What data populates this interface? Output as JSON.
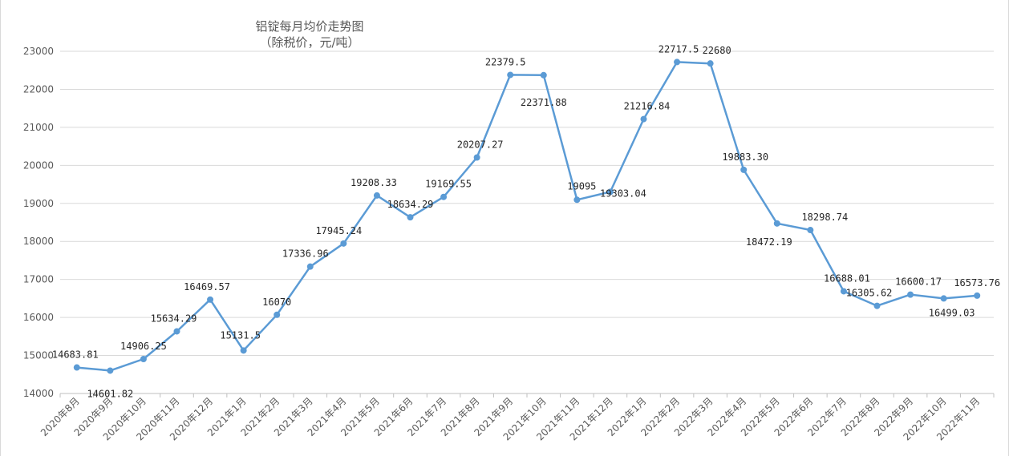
{
  "chart_data": {
    "type": "line",
    "title": "铝锭每月均价走势图",
    "subtitle": "（除税价，元/吨）",
    "xlabel": "",
    "ylabel": "",
    "ylim": [
      14000,
      23000
    ],
    "yticks": [
      14000,
      15000,
      16000,
      17000,
      18000,
      19000,
      20000,
      21000,
      22000,
      23000
    ],
    "grid": true,
    "legend": "none",
    "categories": [
      "2020年8月",
      "2020年9月",
      "2020年10月",
      "2020年11月",
      "2020年12月",
      "2021年1月",
      "2021年2月",
      "2021年3月",
      "2021年4月",
      "2021年5月",
      "2021年6月",
      "2021年7月",
      "2021年8月",
      "2021年9月",
      "2021年10月",
      "2021年11月",
      "2021年12月",
      "2022年1月",
      "2022年2月",
      "2022年3月",
      "2022年4月",
      "2022年5月",
      "2022年6月",
      "2022年7月",
      "2022年8月",
      "2022年9月",
      "2022年10月",
      "2022年11月"
    ],
    "series": [
      {
        "color": "#5b9bd5",
        "values": [
          14683.81,
          14601.82,
          14906.25,
          15634.29,
          16469.57,
          15131.5,
          16070,
          17336.96,
          17945.24,
          19208.33,
          18634.29,
          19169.55,
          20207.27,
          22379.5,
          22371.88,
          19095,
          19303.04,
          21216.84,
          22717.5,
          22680,
          19883.3,
          18472.19,
          18298.74,
          16688.01,
          16305.62,
          16600.17,
          16499.03,
          16573.76
        ],
        "labels": [
          "14683.81",
          "14601.82",
          "14906.25",
          "15634.29",
          "16469.57",
          "15131.5",
          "16070",
          "17336.96",
          "17945.24",
          "19208.33",
          "18634.29",
          "19169.55",
          "20207.27",
          "22379.5",
          "22371.88",
          "19095",
          "19303.04",
          "21216.84",
          "22717.5",
          "22680",
          "19883.30",
          "18472.19",
          "18298.74",
          "16688.01",
          "16305.62",
          "16600.17",
          "16499.03",
          "16573.76"
        ]
      }
    ]
  }
}
